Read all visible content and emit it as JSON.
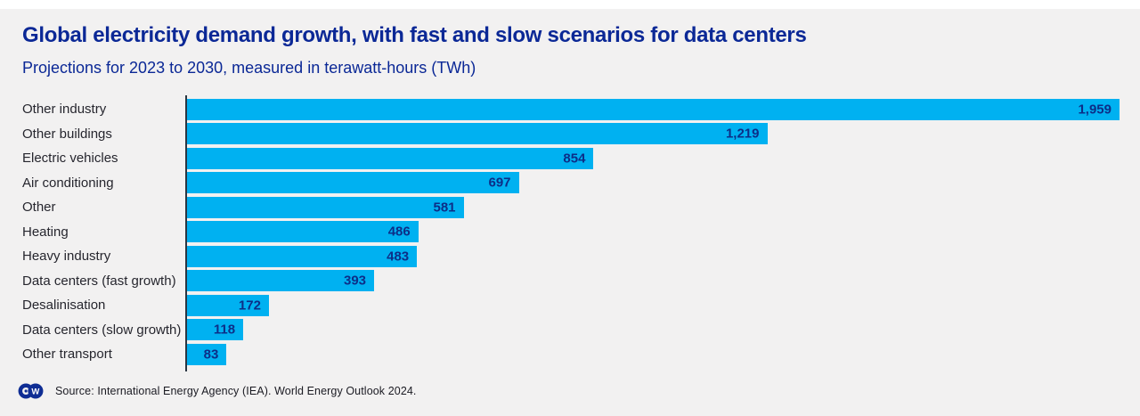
{
  "page": {
    "background": "#f2f1f1",
    "top_strip_color": "#ffffff"
  },
  "chart_data": {
    "type": "bar",
    "orientation": "horizontal",
    "title": "Global electricity demand growth, with fast and slow scenarios for data centers",
    "subtitle": "Projections for 2023 to 2030, measured in terawatt-hours (TWh)",
    "unit": "TWh",
    "categories": [
      "Other industry",
      "Other buildings",
      "Electric vehicles",
      "Air conditioning",
      "Other",
      "Heating",
      "Heavy industry",
      "Data centers (fast growth)",
      "Desalinisation",
      "Data centers (slow growth)",
      "Other transport"
    ],
    "values": [
      1959,
      1219,
      854,
      697,
      581,
      486,
      483,
      393,
      172,
      118,
      83
    ],
    "value_labels": [
      "1,959",
      "1,219",
      "854",
      "697",
      "581",
      "486",
      "483",
      "393",
      "172",
      "118",
      "83"
    ],
    "xlim": [
      0,
      1959
    ],
    "grid": false,
    "legend": false,
    "bar_color": "#00b1f1",
    "title_color": "#0b2896",
    "value_label_color": "#0d2e87",
    "category_label_color": "#26262e",
    "axis_line_color": "#2b3642"
  },
  "footer": {
    "logo": "dw-logo",
    "source": "Source: International Energy Agency (IEA). World Energy Outlook 2024."
  }
}
